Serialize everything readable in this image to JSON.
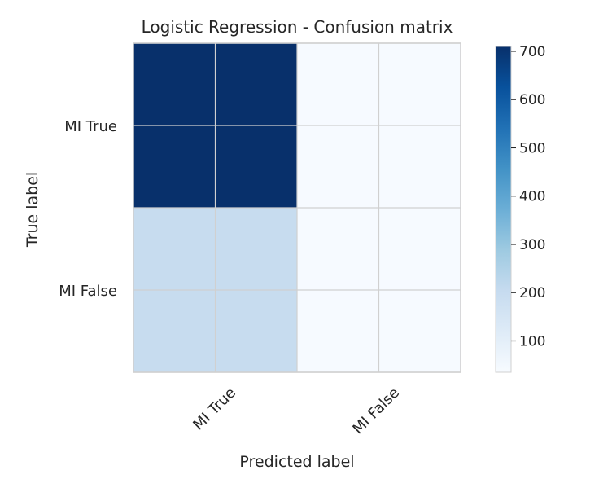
{
  "chart_data": {
    "type": "heatmap",
    "title": "Logistic Regression - Confusion matrix",
    "xlabel": "Predicted label",
    "ylabel": "True label",
    "x_categories": [
      "MI True",
      "MI False"
    ],
    "y_categories": [
      "MI True",
      "MI False"
    ],
    "values": [
      [
        710,
        40
      ],
      [
        200,
        40
      ]
    ],
    "colormap": "Blues",
    "colorbar": {
      "min": 35,
      "max": 710,
      "ticks": [
        100,
        200,
        300,
        400,
        500,
        600,
        700
      ]
    },
    "grid": true,
    "colors": {
      "low": "#f7fbff",
      "mid": "#c6dbef",
      "high": "#08306b",
      "grid": "#d0d0d0",
      "axis": "#262626"
    }
  }
}
